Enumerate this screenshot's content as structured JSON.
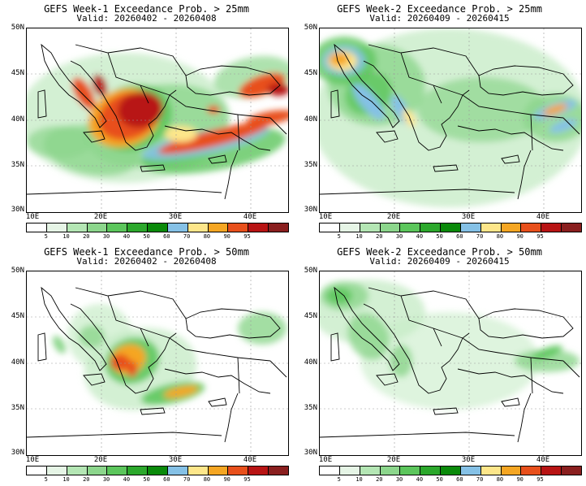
{
  "panels": [
    {
      "title": "GEFS Week-1 Exceedance Prob. > 25mm",
      "valid": "Valid: 20260402 - 20260408",
      "pattern": "w1_25",
      "lat_labels": [
        "50N",
        "45N",
        "40N",
        "35N",
        "30N"
      ],
      "lon_labels": [
        "10E",
        "20E",
        "30E",
        "40E"
      ]
    },
    {
      "title": "GEFS Week-2 Exceedance Prob. > 25mm",
      "valid": "Valid: 20260409 - 20260415",
      "pattern": "w2_25",
      "lat_labels": [
        "50N",
        "45N",
        "40N",
        "35N",
        "30N"
      ],
      "lon_labels": [
        "10E",
        "20E",
        "30E",
        "40E"
      ]
    },
    {
      "title": "GEFS Week-1 Exceedance Prob. > 50mm",
      "valid": "Valid: 20260402 - 20260408",
      "pattern": "w1_50",
      "lat_labels": [
        "50N",
        "45N",
        "40N",
        "35N",
        "30N"
      ],
      "lon_labels": [
        "10E",
        "20E",
        "30E",
        "40E"
      ]
    },
    {
      "title": "GEFS Week-2 Exceedance Prob. > 50mm",
      "valid": "Valid: 20260409 - 20260415",
      "pattern": "w2_50",
      "lat_labels": [
        "50N",
        "45N",
        "40N",
        "35N",
        "30N"
      ],
      "lon_labels": [
        "10E",
        "20E",
        "30E",
        "40E"
      ]
    }
  ],
  "colorbar": {
    "ticks": [
      "5",
      "10",
      "20",
      "30",
      "40",
      "50",
      "60",
      "70",
      "80",
      "90",
      "95"
    ],
    "colors": [
      "#ffffff",
      "#e6f5e6",
      "#b4e6b4",
      "#8cd68c",
      "#5cc65c",
      "#2ca82c",
      "#0a8a0a",
      "#85c1e6",
      "#fde68a",
      "#f5a623",
      "#e8501c",
      "#b81414",
      "#8a1f1f"
    ]
  },
  "colors": {
    "light_green": "#c8ecc8",
    "green": "#8cd68c",
    "mid_green": "#5cc65c",
    "dark_green": "#2ca82c",
    "blue": "#85c1e6",
    "yellow": "#fde68a",
    "orange": "#f5a623",
    "red": "#e8501c",
    "dark_red": "#b81414"
  }
}
